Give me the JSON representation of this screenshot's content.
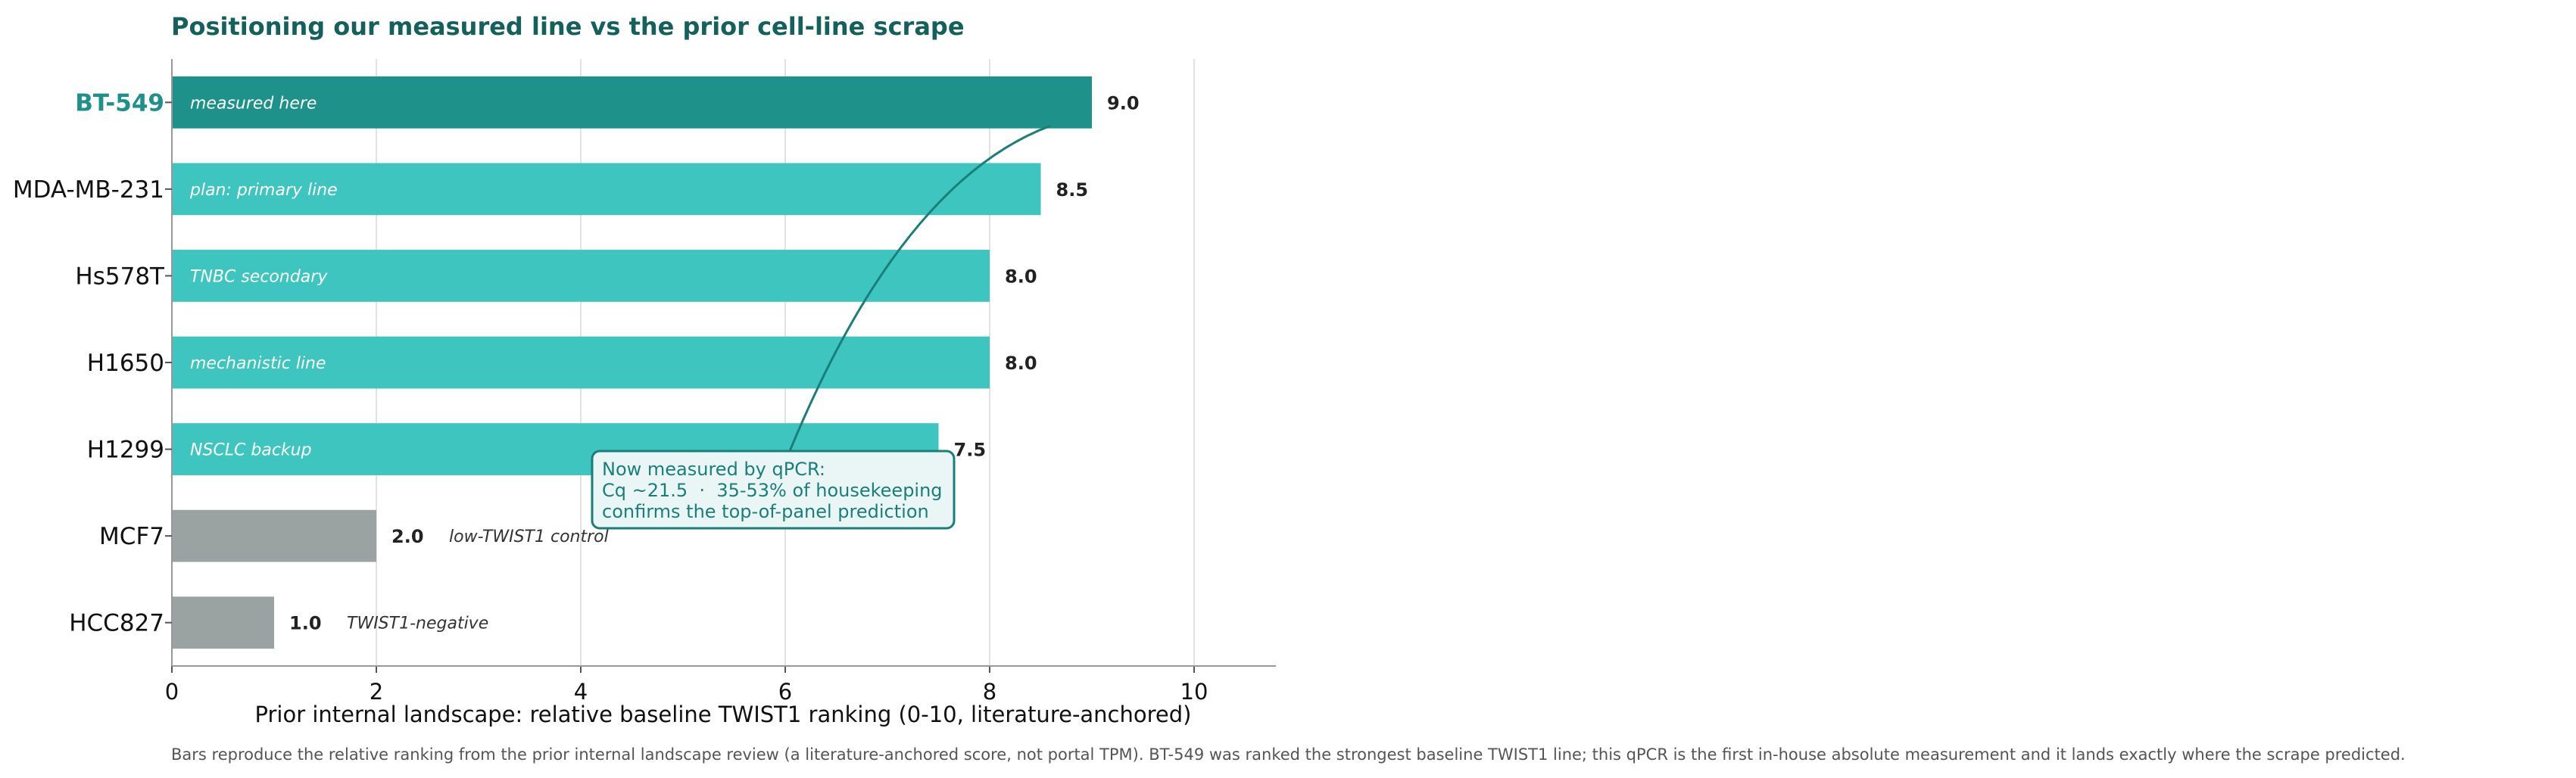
{
  "chart_data": {
    "type": "bar",
    "orientation": "horizontal",
    "title": "Positioning our measured line vs the prior cell-line scrape",
    "xlabel": "Prior internal landscape: relative baseline TWIST1 ranking (0-10, literature-anchored)",
    "ylabel": "",
    "xlim": [
      0,
      10.8
    ],
    "xticks": [
      0,
      2,
      4,
      6,
      8,
      10
    ],
    "grid": "vertical",
    "categories": [
      "BT-549",
      "MDA-MB-231",
      "Hs578T",
      "H1650",
      "H1299",
      "MCF7",
      "HCC827"
    ],
    "values": [
      9.0,
      8.5,
      8.0,
      8.0,
      7.5,
      2.0,
      1.0
    ],
    "value_labels": [
      "9.0",
      "8.5",
      "8.0",
      "8.0",
      "7.5",
      "2.0",
      "1.0"
    ],
    "inside_labels": [
      "measured here",
      "plan: primary line",
      "TNBC secondary",
      "mechanistic line",
      "NSCLC backup",
      "",
      ""
    ],
    "outside_notes": [
      "",
      "",
      "",
      "",
      "",
      "low-TWIST1 control",
      "TWIST1-negative"
    ],
    "bar_colors": [
      "#1e928a",
      "#3ec5bf",
      "#3ec5bf",
      "#3ec5bf",
      "#3ec5bf",
      "#9ba3a2",
      "#9ba3a2"
    ],
    "highlight_category": "BT-549",
    "highlight_color": "#1e928a",
    "annotation": {
      "lines": [
        "Now measured by qPCR:",
        "Cq ~21.5  ·  35-53% of housekeeping",
        "confirms the top-of-panel prediction"
      ],
      "points_to": "BT-549"
    },
    "caption": "Bars reproduce the relative ranking from the prior internal landscape review (a literature-anchored score, not portal TPM). BT-549 was ranked the strongest baseline TWIST1 line; this qPCR is the first in-house absolute measurement and it lands exactly where the scrape predicted."
  }
}
